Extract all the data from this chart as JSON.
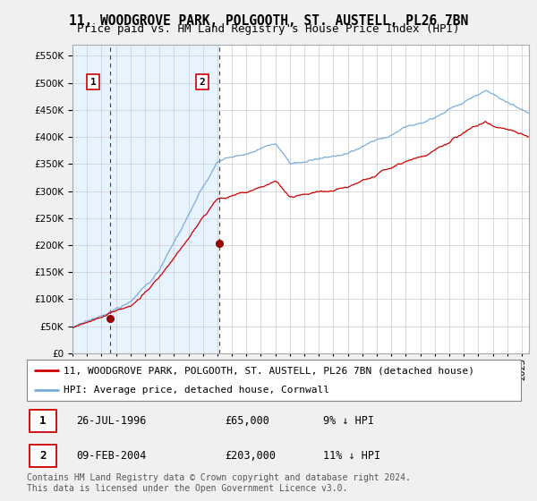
{
  "title": "11, WOODGROVE PARK, POLGOOTH, ST. AUSTELL, PL26 7BN",
  "subtitle": "Price paid vs. HM Land Registry's House Price Index (HPI)",
  "legend_label_red": "11, WOODGROVE PARK, POLGOOTH, ST. AUSTELL, PL26 7BN (detached house)",
  "legend_label_blue": "HPI: Average price, detached house, Cornwall",
  "footnote": "Contains HM Land Registry data © Crown copyright and database right 2024.\nThis data is licensed under the Open Government Licence v3.0.",
  "transaction1_date": "26-JUL-1996",
  "transaction1_price": "£65,000",
  "transaction1_hpi": "9% ↓ HPI",
  "transaction2_date": "09-FEB-2004",
  "transaction2_price": "£203,000",
  "transaction2_hpi": "11% ↓ HPI",
  "transaction1_year": 1996.57,
  "transaction1_value": 65000,
  "transaction2_year": 2004.11,
  "transaction2_value": 203000,
  "ylim_max": 570000,
  "xlim_start": 1994.0,
  "xlim_end": 2025.5,
  "background_color": "#f0f0f0",
  "plot_bg_color": "#ffffff",
  "shade_color": "#ddeeff",
  "grid_color": "#cccccc",
  "red_line_color": "#cc0000",
  "blue_line_color": "#7aaddc",
  "vline_color": "#cc0000",
  "marker_color": "#990000",
  "title_fontsize": 10.5,
  "subtitle_fontsize": 9,
  "tick_fontsize": 7.5,
  "legend_fontsize": 8,
  "footnote_fontsize": 7
}
